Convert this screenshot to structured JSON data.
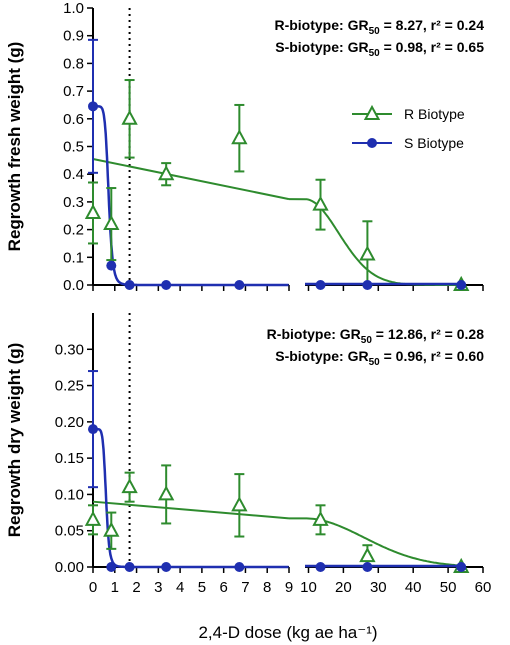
{
  "chart_data": {
    "type": "scatter",
    "xlabel": "2,4-D dose (kg ae ha⁻¹)",
    "colors": {
      "r_biotype": "#2e8b2e",
      "s_biotype": "#1f2fb0"
    },
    "legend": {
      "placement": "top-right",
      "entries": [
        "R Biotype",
        "S Biotype"
      ]
    },
    "x_break": {
      "left_range": [
        0,
        9
      ],
      "right_range": [
        9,
        60
      ]
    },
    "x_ticks_left": [
      "0",
      "1",
      "2",
      "3",
      "4",
      "5",
      "6",
      "7",
      "8",
      "9"
    ],
    "x_ticks_right": [
      "10",
      "20",
      "30",
      "40",
      "50",
      "60"
    ],
    "dotted_vline_x": 1.68,
    "panels": [
      {
        "id": "fresh",
        "ylabel": "Regrowth fresh weight (g)",
        "ylim": [
          0,
          1.0
        ],
        "yticks": [
          "0.0",
          "0.1",
          "0.2",
          "0.3",
          "0.4",
          "0.5",
          "0.6",
          "0.7",
          "0.8",
          "0.9",
          "1.0"
        ],
        "annotation_r": {
          "prefix": "R-biotype: GR",
          "sub": "50",
          "suffix": " = 8.27, r² = 0.24"
        },
        "annotation_s": {
          "prefix": "S-biotype: GR",
          "sub": "50",
          "suffix": " = 0.98, r² = 0.65"
        },
        "series": [
          {
            "name": "R Biotype",
            "points": [
              {
                "x": 0,
                "y": 0.26,
                "err": 0.11
              },
              {
                "x": 0.84,
                "y": 0.22,
                "err": 0.13
              },
              {
                "x": 1.68,
                "y": 0.6,
                "err": 0.14
              },
              {
                "x": 3.36,
                "y": 0.4,
                "err": 0.04
              },
              {
                "x": 6.72,
                "y": 0.53,
                "err": 0.12
              },
              {
                "x": 13.44,
                "y": 0.29,
                "err": 0.09
              },
              {
                "x": 26.88,
                "y": 0.11,
                "err": 0.12
              },
              {
                "x": 53.76,
                "y": 0.0,
                "err": 0.0
              }
            ]
          },
          {
            "name": "S Biotype",
            "points": [
              {
                "x": 0,
                "y": 0.645,
                "err": 0.24
              },
              {
                "x": 0.84,
                "y": 0.07,
                "err": 0.0
              },
              {
                "x": 1.68,
                "y": 0.0,
                "err": 0.0
              },
              {
                "x": 3.36,
                "y": 0.0,
                "err": 0.0
              },
              {
                "x": 6.72,
                "y": 0.0,
                "err": 0.0
              },
              {
                "x": 13.44,
                "y": 0.0,
                "err": 0.0
              },
              {
                "x": 26.88,
                "y": 0.0,
                "err": 0.0
              },
              {
                "x": 53.76,
                "y": 0.0,
                "err": 0.0
              }
            ]
          }
        ]
      },
      {
        "id": "dry",
        "ylabel": "Regrowth dry weight (g)",
        "ylim": [
          0,
          0.35
        ],
        "yticks": [
          "0.00",
          "0.05",
          "0.10",
          "0.15",
          "0.20",
          "0.25",
          "0.30"
        ],
        "annotation_r": {
          "prefix": "R-biotype: GR",
          "sub": "50",
          "suffix": " = 12.86, r² = 0.28"
        },
        "annotation_s": {
          "prefix": "S-biotype: GR",
          "sub": "50",
          "suffix": " = 0.96, r² = 0.60"
        },
        "series": [
          {
            "name": "R Biotype",
            "points": [
              {
                "x": 0,
                "y": 0.065,
                "err": 0.02
              },
              {
                "x": 0.84,
                "y": 0.05,
                "err": 0.025
              },
              {
                "x": 1.68,
                "y": 0.11,
                "err": 0.02
              },
              {
                "x": 3.36,
                "y": 0.1,
                "err": 0.04
              },
              {
                "x": 6.72,
                "y": 0.085,
                "err": 0.043
              },
              {
                "x": 13.44,
                "y": 0.065,
                "err": 0.02
              },
              {
                "x": 26.88,
                "y": 0.015,
                "err": 0.015
              },
              {
                "x": 53.76,
                "y": 0.0,
                "err": 0.0
              }
            ]
          },
          {
            "name": "S Biotype",
            "points": [
              {
                "x": 0,
                "y": 0.19,
                "err": 0.08
              },
              {
                "x": 0.84,
                "y": 0.0,
                "err": 0.0
              },
              {
                "x": 1.68,
                "y": 0.0,
                "err": 0.0
              },
              {
                "x": 3.36,
                "y": 0.0,
                "err": 0.0
              },
              {
                "x": 6.72,
                "y": 0.0,
                "err": 0.0
              },
              {
                "x": 13.44,
                "y": 0.0,
                "err": 0.0
              },
              {
                "x": 26.88,
                "y": 0.0,
                "err": 0.0
              },
              {
                "x": 53.76,
                "y": 0.0,
                "err": 0.0
              }
            ]
          }
        ]
      }
    ]
  }
}
